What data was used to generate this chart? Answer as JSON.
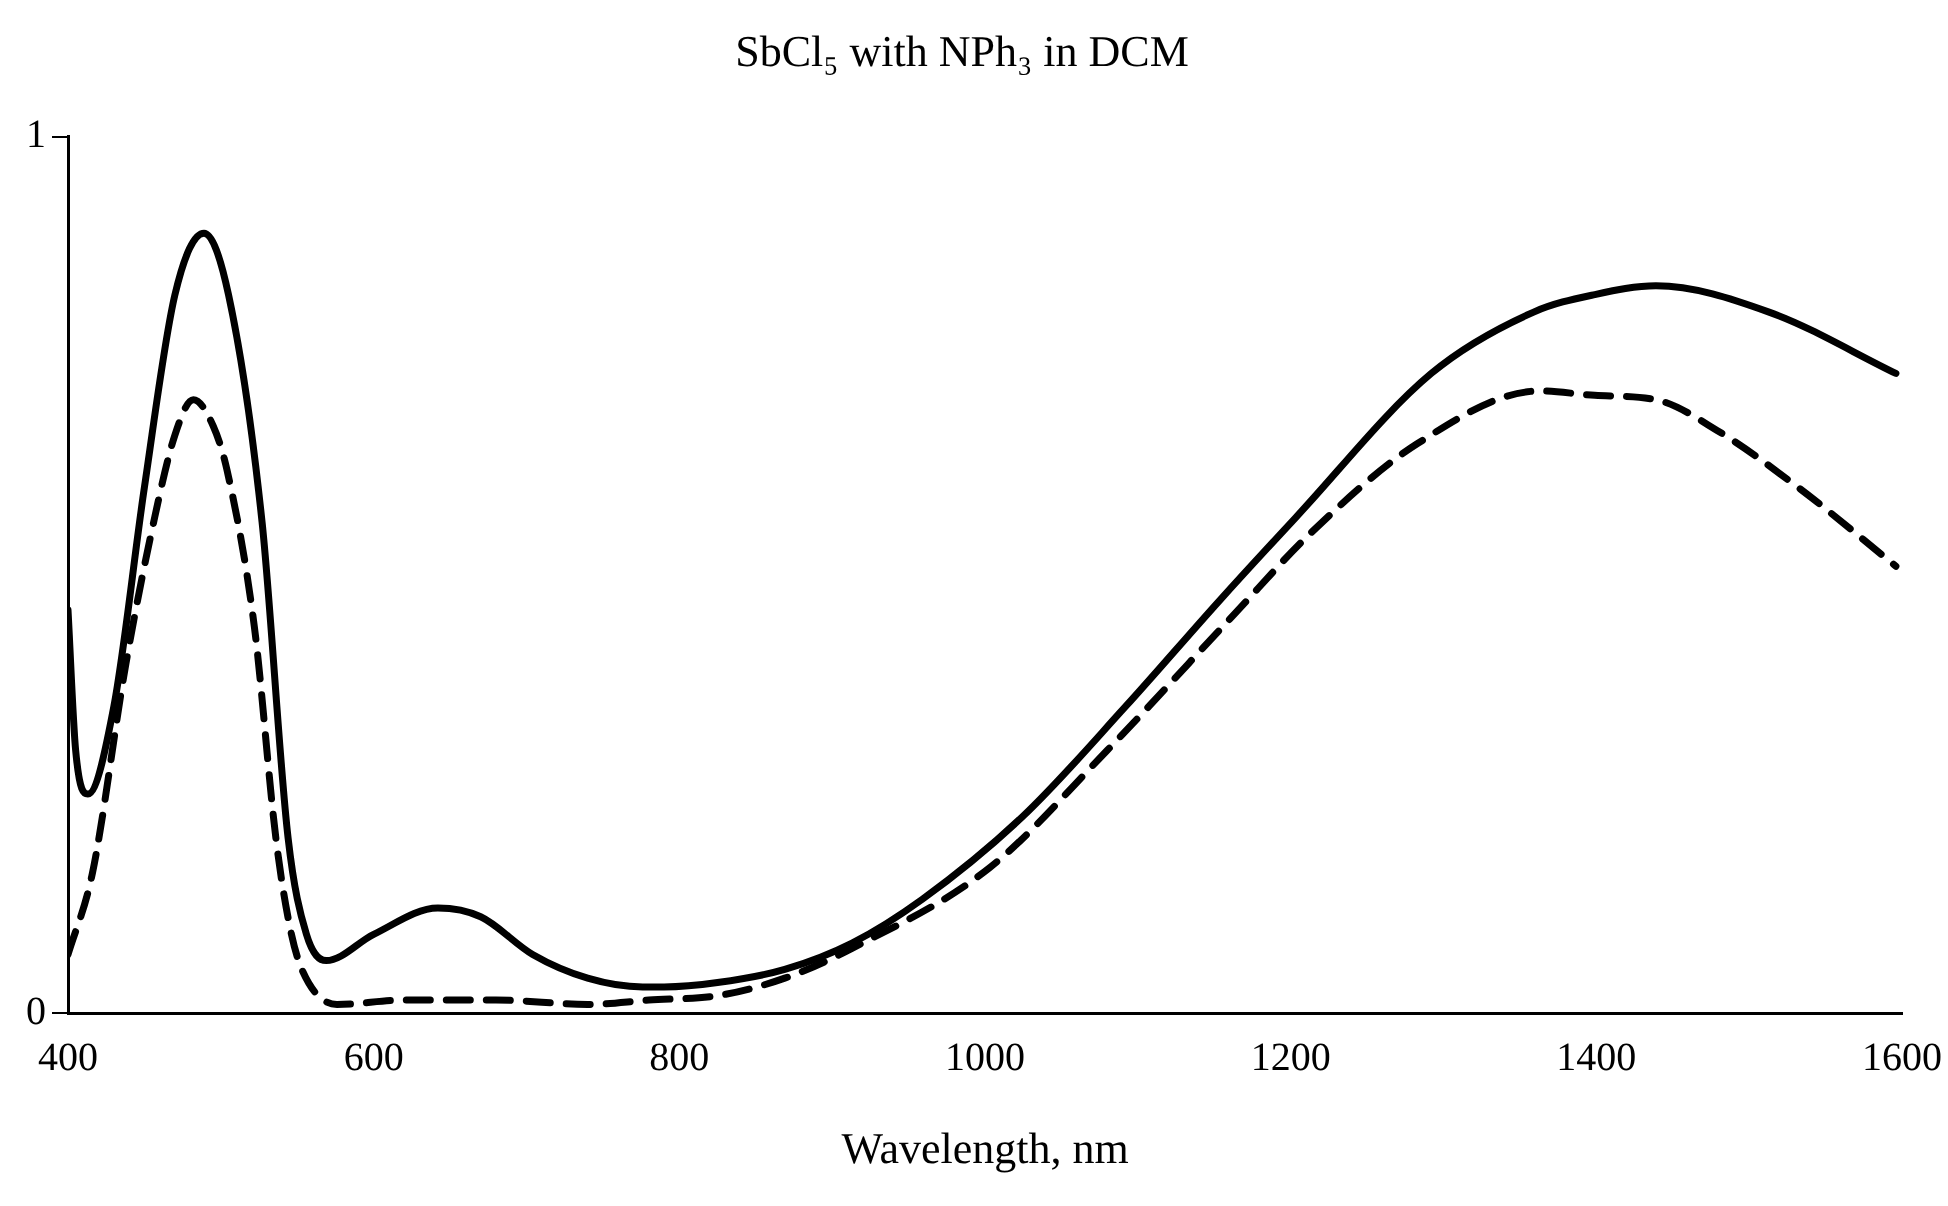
{
  "chart_data": {
    "type": "line",
    "title": "SbCl₅ with NPh₃ in DCM",
    "xlabel": "Wavelength, nm",
    "xlim": [
      400,
      1600
    ],
    "xticks": [
      400,
      600,
      800,
      1000,
      1200,
      1400,
      1600
    ],
    "ylim": [
      0,
      1
    ],
    "yticks": [
      0,
      1
    ],
    "grid": false,
    "legend": false,
    "marker": "none",
    "series": [
      {
        "color": "#000000",
        "line_style": "solid",
        "x": [
          400,
          405,
          413,
          430,
          450,
          470,
          489,
          505,
          527,
          544,
          556,
          569,
          600,
          642,
          670,
          704,
          740,
          776,
          790,
          825,
          869,
          913,
          959,
          1025,
          1092,
          1153,
          1203,
          1292,
          1359,
          1399,
          1439,
          1513,
          1596
        ],
        "values": [
          0.46,
          0.3,
          0.25,
          0.35,
          0.6,
          0.82,
          0.89,
          0.82,
          0.56,
          0.2,
          0.09,
          0.06,
          0.09,
          0.12,
          0.11,
          0.067,
          0.04,
          0.03,
          0.03,
          0.035,
          0.05,
          0.08,
          0.13,
          0.225,
          0.35,
          0.47,
          0.565,
          0.73,
          0.8,
          0.82,
          0.83,
          0.8,
          0.73
        ]
      },
      {
        "color": "#000000",
        "line_style": "dashed",
        "x": [
          400,
          416,
          438,
          456,
          470,
          482,
          495,
          504,
          522,
          536,
          545,
          553,
          576,
          620,
          680,
          740,
          780,
          825,
          869,
          913,
          1003,
          1080,
          1163,
          1212,
          1283,
          1363,
          1399,
          1439,
          1479,
          1532,
          1596
        ],
        "values": [
          0.067,
          0.16,
          0.4,
          0.56,
          0.66,
          0.7,
          0.67,
          0.62,
          0.44,
          0.2,
          0.1,
          0.05,
          0.01,
          0.015,
          0.015,
          0.01,
          0.015,
          0.02,
          0.04,
          0.074,
          0.166,
          0.3,
          0.455,
          0.546,
          0.65,
          0.71,
          0.705,
          0.7,
          0.665,
          0.6,
          0.51
        ]
      }
    ]
  }
}
